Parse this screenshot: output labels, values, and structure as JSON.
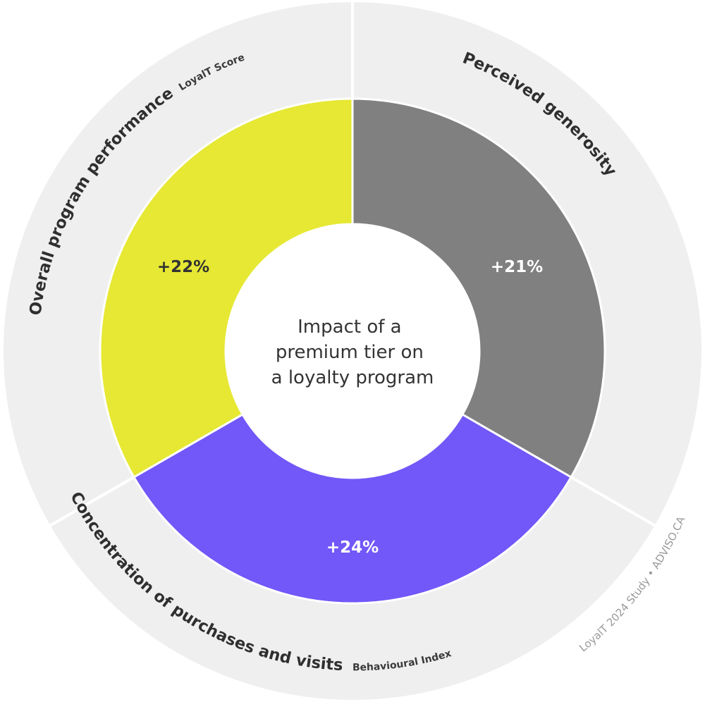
{
  "chart_data": {
    "type": "pie",
    "center_title_lines": [
      "Impact of a",
      "premium tier on",
      "a loyalty program"
    ],
    "segments": [
      {
        "value_label": "+21%",
        "category": "Perceived generosity",
        "subcategory": "",
        "color": "#808080",
        "label_color": "#ffffff"
      },
      {
        "value_label": "+24%",
        "category": "Concentration of purchases and visits",
        "subcategory": "Behavioural Index",
        "color": "#7257F9",
        "label_color": "#ffffff"
      },
      {
        "value_label": "+22%",
        "category": "Overall program performance",
        "subcategory": "LoyalT Score",
        "color": "#E6E833",
        "label_color": "#333333"
      }
    ],
    "outer_ring_color": "#EFEFEF",
    "credit": "LoyalT 2024 Study • ADVISO.CA"
  }
}
